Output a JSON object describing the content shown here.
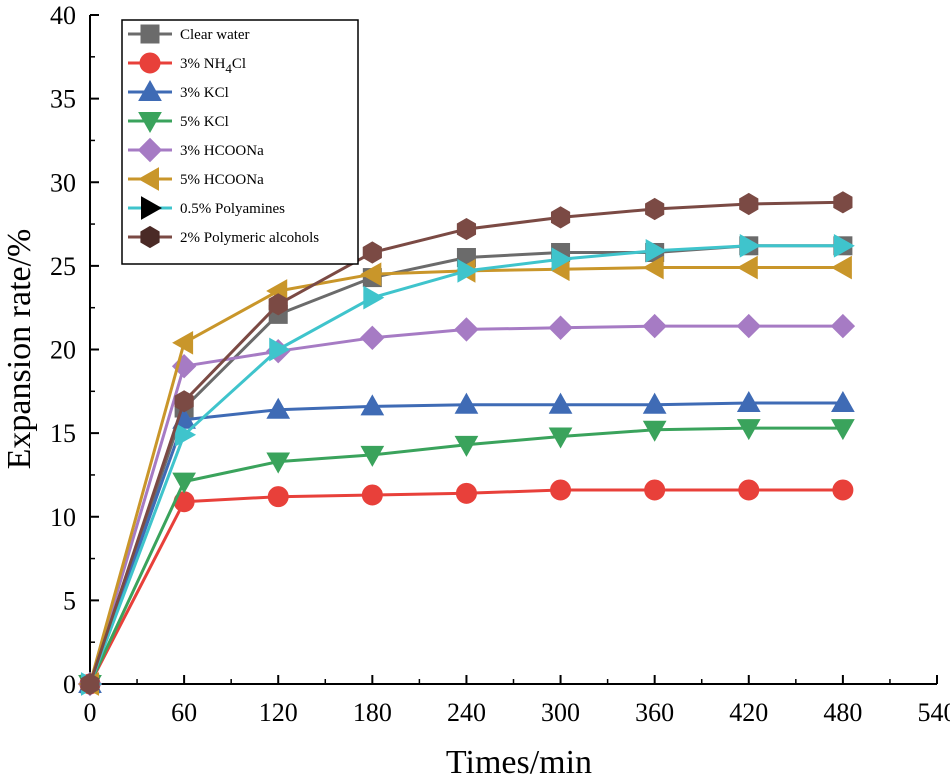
{
  "chart_data": {
    "type": "line",
    "title": "",
    "xlabel": "Times/min",
    "ylabel": "Expansion rate/%",
    "xlim": [
      0,
      540
    ],
    "ylim": [
      0,
      40
    ],
    "xticks": [
      0,
      60,
      120,
      180,
      240,
      300,
      360,
      420,
      480,
      540
    ],
    "yticks": [
      0,
      5,
      10,
      15,
      20,
      25,
      30,
      35,
      40
    ],
    "x": [
      0,
      60,
      120,
      180,
      240,
      300,
      360,
      420,
      480
    ],
    "grid": false,
    "legend_position": "top-left",
    "series": [
      {
        "name": "Clear water",
        "color": "#6b6b6b",
        "marker": "square",
        "values": [
          0,
          16.5,
          22.1,
          24.3,
          25.5,
          25.8,
          25.8,
          26.2,
          26.2
        ]
      },
      {
        "name": "3% NH4Cl",
        "legend_main": "3% NH",
        "legend_sub": "4",
        "legend_tail": "Cl",
        "color": "#e8403a",
        "marker": "circle",
        "values": [
          0,
          10.9,
          11.2,
          11.3,
          11.4,
          11.6,
          11.6,
          11.6,
          11.6
        ]
      },
      {
        "name": "3% KCl",
        "color": "#3f6bb5",
        "marker": "triangle-up",
        "values": [
          0,
          15.8,
          16.4,
          16.6,
          16.7,
          16.7,
          16.7,
          16.8,
          16.8
        ]
      },
      {
        "name": "5% KCl",
        "color": "#3aa35c",
        "marker": "triangle-down",
        "values": [
          0,
          12.1,
          13.3,
          13.7,
          14.3,
          14.8,
          15.2,
          15.3,
          15.3
        ]
      },
      {
        "name": "3% HCOONa",
        "color": "#a67bc4",
        "marker": "diamond",
        "values": [
          0,
          19.0,
          19.9,
          20.7,
          21.2,
          21.3,
          21.4,
          21.4,
          21.4
        ]
      },
      {
        "name": "5% HCOONa",
        "color": "#c9962a",
        "marker": "triangle-left",
        "values": [
          0,
          20.4,
          23.5,
          24.5,
          24.7,
          24.8,
          24.9,
          24.9,
          24.9
        ]
      },
      {
        "name": "0.5% Polyamines",
        "color": "#3fc4cc",
        "marker": "triangle-right",
        "legend_marker_color": "#000000",
        "values": [
          0,
          14.9,
          20.0,
          23.1,
          24.7,
          25.4,
          25.9,
          26.2,
          26.2
        ]
      },
      {
        "name": "2% Polymeric alcohols",
        "color": "#7b4a44",
        "marker": "hexagon",
        "legend_marker_color": "#4a2a26",
        "values": [
          0,
          16.9,
          22.7,
          25.8,
          27.2,
          27.9,
          28.4,
          28.7,
          28.8
        ]
      }
    ]
  }
}
